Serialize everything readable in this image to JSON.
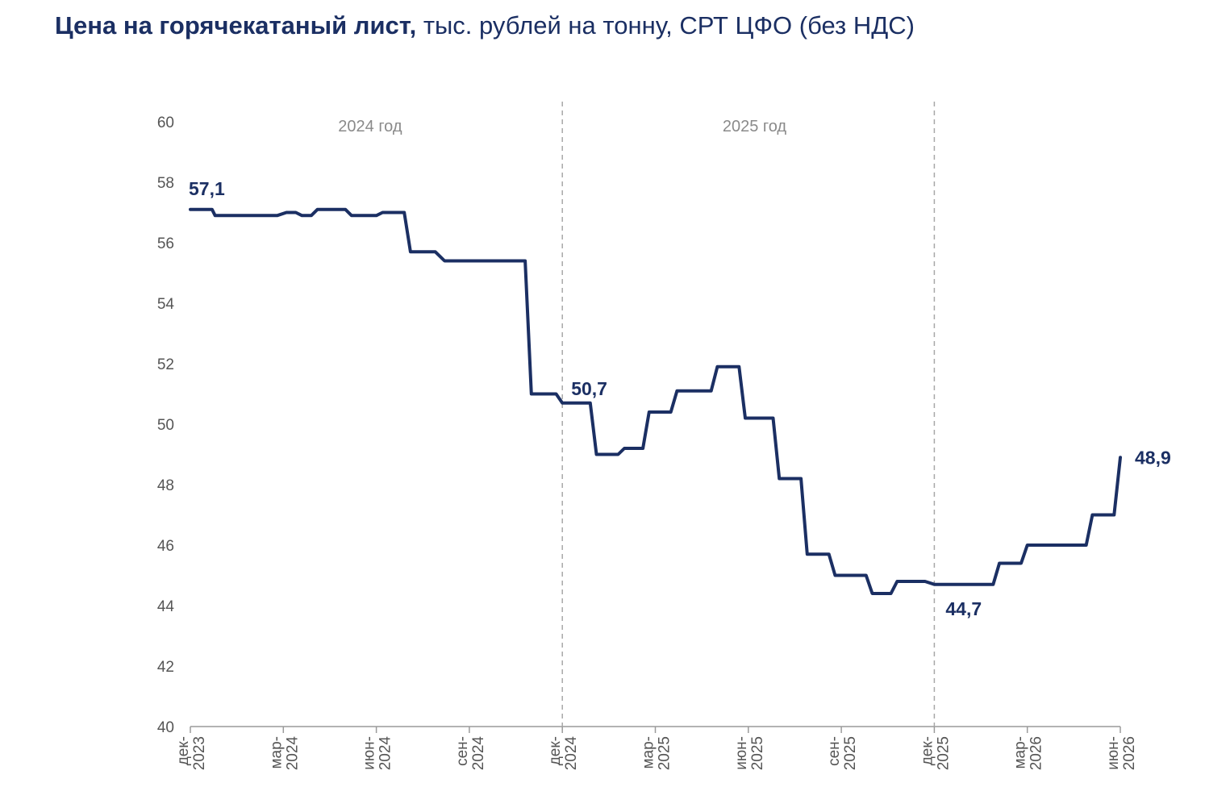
{
  "title": {
    "bold": "Цена на горячекатаный лист,",
    "rest": " тыс. рублей на тонну, СРТ ЦФО (без НДС)"
  },
  "chart_data": {
    "type": "line",
    "title": "Цена на горячекатаный лист, тыс. рублей на тонну, СРТ ЦФО (без НДС)",
    "ylim": [
      40,
      60
    ],
    "yticks": [
      "40",
      "42",
      "44",
      "46",
      "48",
      "50",
      "52",
      "54",
      "56",
      "58",
      "60"
    ],
    "xlim": [
      "2023-12",
      "2026-06"
    ],
    "xticks": [
      {
        "month": 0,
        "line1": "дек-",
        "line2": "2023"
      },
      {
        "month": 3,
        "line1": "мар-",
        "line2": "2024"
      },
      {
        "month": 6,
        "line1": "июн-",
        "line2": "2024"
      },
      {
        "month": 9,
        "line1": "сен-",
        "line2": "2024"
      },
      {
        "month": 12,
        "line1": "дек-",
        "line2": "2024"
      },
      {
        "month": 15,
        "line1": "мар-",
        "line2": "2025"
      },
      {
        "month": 18,
        "line1": "июн-",
        "line2": "2025"
      },
      {
        "month": 21,
        "line1": "сен-",
        "line2": "2025"
      },
      {
        "month": 24,
        "line1": "дек-",
        "line2": "2025"
      },
      {
        "month": 27,
        "line1": "мар-",
        "line2": "2026"
      },
      {
        "month": 30,
        "line1": "июн-",
        "line2": "2026"
      }
    ],
    "year_separators": [
      12,
      24
    ],
    "year_labels": [
      {
        "month": 5.8,
        "text": "2024 год"
      },
      {
        "month": 18.2,
        "text": "2025 год"
      }
    ],
    "grid": false,
    "color": "#1b2f63",
    "series": [
      {
        "points": [
          [
            0,
            57.1
          ],
          [
            0.7,
            57.1
          ],
          [
            0.8,
            56.9
          ],
          [
            2.8,
            56.9
          ],
          [
            3.1,
            57.0
          ],
          [
            3.4,
            57.0
          ],
          [
            3.6,
            56.9
          ],
          [
            3.9,
            56.9
          ],
          [
            4.1,
            57.1
          ],
          [
            5.0,
            57.1
          ],
          [
            5.2,
            56.9
          ],
          [
            6.0,
            56.9
          ],
          [
            6.2,
            57.0
          ],
          [
            6.9,
            57.0
          ],
          [
            7.1,
            55.7
          ],
          [
            7.9,
            55.7
          ],
          [
            8.2,
            55.4
          ],
          [
            10.8,
            55.4
          ],
          [
            11.0,
            51.0
          ],
          [
            11.8,
            51.0
          ],
          [
            12.0,
            50.7
          ],
          [
            12.9,
            50.7
          ],
          [
            13.1,
            49.0
          ],
          [
            13.8,
            49.0
          ],
          [
            14.0,
            49.2
          ],
          [
            14.6,
            49.2
          ],
          [
            14.8,
            50.4
          ],
          [
            15.5,
            50.4
          ],
          [
            15.7,
            51.1
          ],
          [
            16.8,
            51.1
          ],
          [
            17.0,
            51.9
          ],
          [
            17.7,
            51.9
          ],
          [
            17.9,
            50.2
          ],
          [
            18.8,
            50.2
          ],
          [
            19.0,
            48.2
          ],
          [
            19.7,
            48.2
          ],
          [
            19.9,
            45.7
          ],
          [
            20.6,
            45.7
          ],
          [
            20.8,
            45.0
          ],
          [
            21.8,
            45.0
          ],
          [
            22.0,
            44.4
          ],
          [
            22.6,
            44.4
          ],
          [
            22.8,
            44.8
          ],
          [
            23.7,
            44.8
          ],
          [
            24.0,
            44.7
          ],
          [
            25.9,
            44.7
          ],
          [
            26.1,
            45.4
          ],
          [
            26.8,
            45.4
          ],
          [
            27.0,
            46.0
          ],
          [
            28.9,
            46.0
          ],
          [
            29.1,
            47.0
          ],
          [
            29.8,
            47.0
          ],
          [
            30.0,
            48.9
          ]
        ]
      }
    ],
    "annotations": [
      {
        "text": "57,1",
        "month": 0,
        "value": 57.1
      },
      {
        "text": "50,7",
        "month": 12,
        "value": 50.7
      },
      {
        "text": "44,7",
        "month": 24,
        "value": 44.7
      },
      {
        "text": "48,9",
        "month": 30,
        "value": 48.9
      }
    ]
  }
}
